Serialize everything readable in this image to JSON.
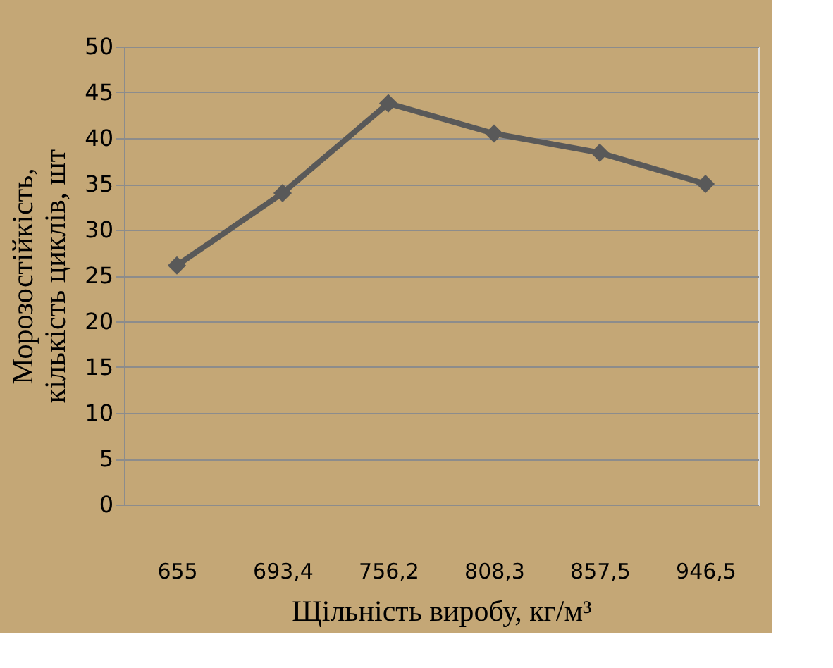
{
  "chart_data": {
    "type": "line",
    "xlabel": "Щільність виробу, кг/м³",
    "ylabel": "Морозостійкість,\nкількість циклів, шт",
    "categories": [
      "655",
      "693,4",
      "756,2",
      "808,3",
      "857,5",
      "946,5"
    ],
    "series": [
      {
        "color": "#595959",
        "values": [
          26.1,
          34.0,
          43.8,
          40.5,
          38.4,
          35.0
        ]
      }
    ],
    "ylim": [
      0,
      50
    ],
    "yticks": [
      0,
      5,
      10,
      15,
      20,
      25,
      30,
      35,
      40,
      45,
      50
    ],
    "grid": "y",
    "marker": "diamond",
    "line_style": "solid"
  }
}
